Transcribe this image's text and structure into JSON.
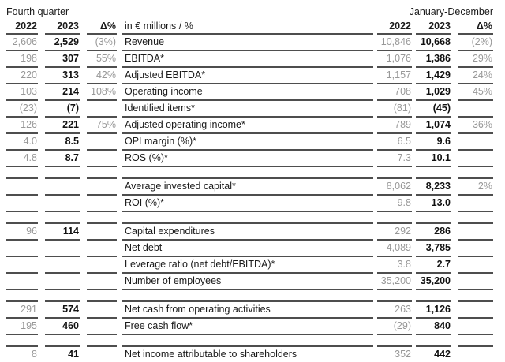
{
  "header": {
    "left_group_title": "Fourth quarter",
    "right_group_title": "January-December",
    "unit_label": "in € millions / %",
    "left_cols": [
      "2022",
      "2023",
      "Δ%"
    ],
    "right_cols": [
      "2022",
      "2023",
      "Δ%"
    ]
  },
  "colors": {
    "text_black": "#1a1a1a",
    "muted_gray": "#989898",
    "rule_line": "#4e4e4e",
    "background": "#ffffff"
  },
  "table": {
    "rows": [
      {
        "label": "Revenue",
        "q22": "2,606",
        "q23": "2,529",
        "qd": "(3%)",
        "y22": "10,846",
        "y23": "10,668",
        "yd": "(2%)"
      },
      {
        "label": "EBITDA*",
        "q22": "198",
        "q23": "307",
        "qd": "55%",
        "y22": "1,076",
        "y23": "1,386",
        "yd": "29%"
      },
      {
        "label": "Adjusted EBITDA*",
        "q22": "220",
        "q23": "313",
        "qd": "42%",
        "y22": "1,157",
        "y23": "1,429",
        "yd": "24%"
      },
      {
        "label": "Operating income",
        "q22": "103",
        "q23": "214",
        "qd": "108%",
        "y22": "708",
        "y23": "1,029",
        "yd": "45%"
      },
      {
        "label": "Identified items*",
        "q22": "(23)",
        "q23": "(7)",
        "qd": "",
        "y22": "(81)",
        "y23": "(45)",
        "yd": ""
      },
      {
        "label": "Adjusted operating income*",
        "q22": "126",
        "q23": "221",
        "qd": "75%",
        "y22": "789",
        "y23": "1,074",
        "yd": "36%"
      },
      {
        "label": "OPI margin (%)*",
        "q22": "4.0",
        "q23": "8.5",
        "qd": "",
        "y22": "6.5",
        "y23": "9.6",
        "yd": ""
      },
      {
        "label": "ROS (%)*",
        "q22": "4.8",
        "q23": "8.7",
        "qd": "",
        "y22": "7.3",
        "y23": "10.1",
        "yd": ""
      },
      {
        "spacer": true
      },
      {
        "label": "Average invested capital*",
        "q22": "",
        "q23": "",
        "qd": "",
        "y22": "8,062",
        "y23": "8,233",
        "yd": "2%"
      },
      {
        "label": "ROI (%)*",
        "q22": "",
        "q23": "",
        "qd": "",
        "y22": "9.8",
        "y23": "13.0",
        "yd": ""
      },
      {
        "spacer": true
      },
      {
        "label": "Capital expenditures",
        "q22": "96",
        "q23": "114",
        "qd": "",
        "y22": "292",
        "y23": "286",
        "yd": ""
      },
      {
        "label": "Net debt",
        "q22": "",
        "q23": "",
        "qd": "",
        "y22": "4,089",
        "y23": "3,785",
        "yd": ""
      },
      {
        "label": "Leverage ratio (net debt/EBITDA)*",
        "q22": "",
        "q23": "",
        "qd": "",
        "y22": "3.8",
        "y23": "2.7",
        "yd": ""
      },
      {
        "label": "Number of employees",
        "q22": "",
        "q23": "",
        "qd": "",
        "y22": "35,200",
        "y23": "35,200",
        "yd": ""
      },
      {
        "spacer": true
      },
      {
        "label": "Net cash from operating activities",
        "q22": "291",
        "q23": "574",
        "qd": "",
        "y22": "263",
        "y23": "1,126",
        "yd": ""
      },
      {
        "label": "Free cash flow*",
        "q22": "195",
        "q23": "460",
        "qd": "",
        "y22": "(29)",
        "y23": "840",
        "yd": ""
      },
      {
        "spacer": true
      },
      {
        "label": "Net income attributable to shareholders",
        "q22": "8",
        "q23": "41",
        "qd": "",
        "y22": "352",
        "y23": "442",
        "yd": ""
      }
    ]
  }
}
